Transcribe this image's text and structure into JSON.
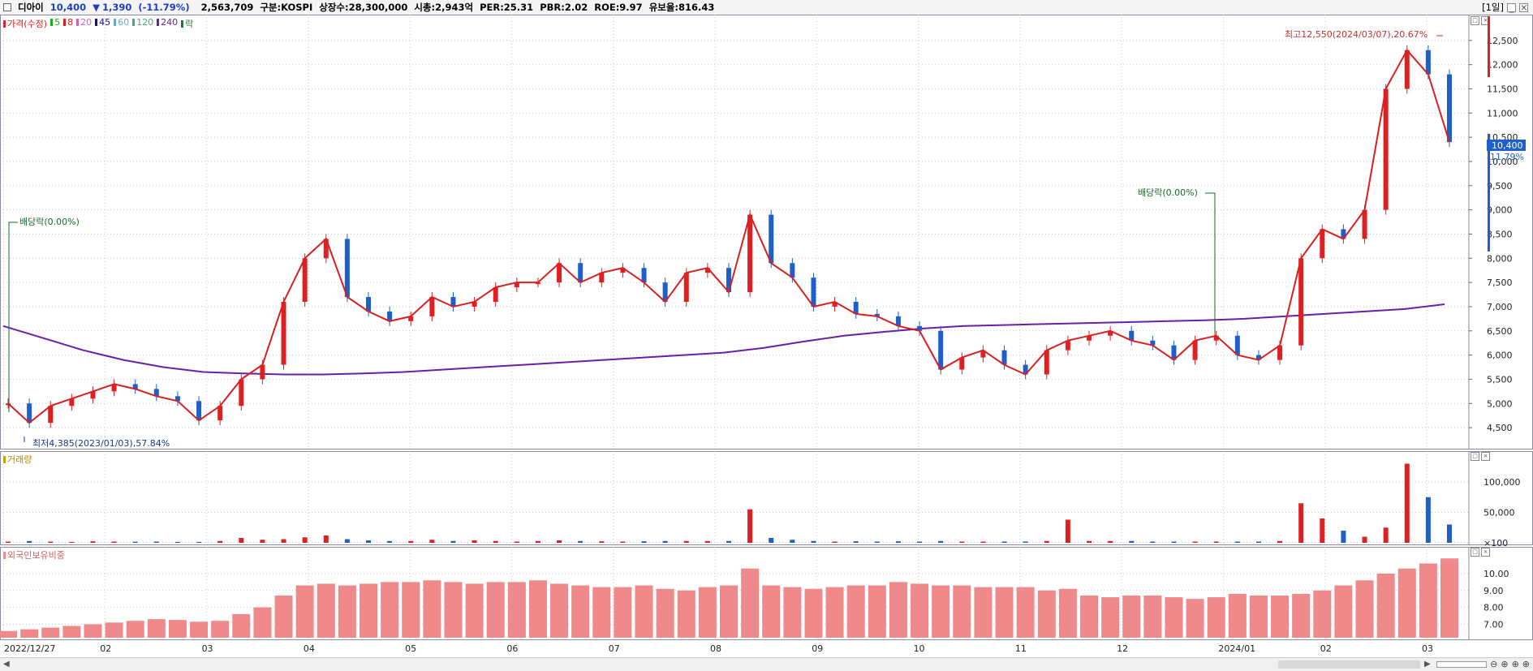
{
  "header": {
    "name": "디아이",
    "price": "10,400",
    "change_arrow": "▼",
    "change": "1,390",
    "change_pct": "(-11.79%)",
    "volume": "2,563,709",
    "market": "구분:KOSPI",
    "shares": "상장수:28,300,000",
    "market_cap": "시총:2,943억",
    "per": "PER:25.31",
    "pbr": "PBR:2.02",
    "roe": "ROE:9.97",
    "retention": "유보율:816.43",
    "period": "[1일]"
  },
  "legend": {
    "price_label": "가격(수정)",
    "ma": [
      {
        "label": "5",
        "color": "#22aa22"
      },
      {
        "label": "8",
        "color": "#e02020"
      },
      {
        "label": "20",
        "color": "#cc66bb"
      },
      {
        "label": "45",
        "color": "#1010a0"
      },
      {
        "label": "60",
        "color": "#66aacc"
      },
      {
        "label": "120",
        "color": "#44aa77"
      },
      {
        "label": "240",
        "color": "#6a1fa8"
      }
    ],
    "drop_label": "락",
    "volume_label": "거래량",
    "foreign_label": "외국인보유비중"
  },
  "annotations": {
    "high": "최고12,550(2024/03/07),20.67%",
    "low": "최저4,385(2023/01/03),57.84%",
    "dividend1": "배당락(0.00%)",
    "dividend2": "배당락(0.00%)",
    "current_price": "10,400",
    "current_pct": "-11.79%"
  },
  "colors": {
    "up": "#e02020",
    "down": "#1f5fc8",
    "foreign_bar": "#f08a8a",
    "ma240": "#6a1fa8"
  },
  "chart_data": [
    {
      "type": "line",
      "title": "가격(수정)",
      "ylim": [
        4200,
        12900
      ],
      "y_ticks": [
        4500,
        5000,
        5500,
        6000,
        6500,
        7000,
        7500,
        8000,
        8500,
        9000,
        9500,
        10000,
        10500,
        11000,
        11500,
        12000,
        12500
      ],
      "x_tick_labels": [
        "2022/12/27",
        "02",
        "03",
        "04",
        "05",
        "06",
        "07",
        "08",
        "09",
        "10",
        "11",
        "12",
        "2024/01",
        "02",
        "03"
      ],
      "series": [
        {
          "name": "가격(수정)",
          "style": "candlestick-close",
          "values": [
            5000,
            4600,
            4950,
            5100,
            5250,
            5400,
            5300,
            5150,
            5050,
            4650,
            4950,
            5500,
            5800,
            7100,
            8000,
            8400,
            7200,
            6900,
            6700,
            6800,
            7200,
            7000,
            7100,
            7400,
            7500,
            7500,
            7900,
            7500,
            7700,
            7800,
            7500,
            7100,
            7700,
            7800,
            7300,
            8900,
            7900,
            7600,
            7000,
            7100,
            6850,
            6800,
            6600,
            6500,
            5700,
            5950,
            6100,
            5800,
            5600,
            6100,
            6300,
            6400,
            6500,
            6300,
            6200,
            5900,
            6300,
            6400,
            6000,
            5900,
            6200,
            8000,
            8600,
            8400,
            9000,
            11500,
            12300,
            11800,
            10400
          ]
        },
        {
          "name": "240",
          "values": [
            6600,
            6350,
            6100,
            5900,
            5750,
            5650,
            5620,
            5600,
            5600,
            5620,
            5650,
            5700,
            5750,
            5800,
            5850,
            5900,
            5950,
            6000,
            6050,
            6150,
            6280,
            6400,
            6480,
            6550,
            6600,
            6620,
            6640,
            6660,
            6680,
            6700,
            6720,
            6750,
            6800,
            6850,
            6900,
            6950,
            7050
          ]
        }
      ]
    },
    {
      "type": "bar",
      "title": "거래량",
      "ylim": [
        0,
        140000
      ],
      "y_ticks": [
        100,
        50000,
        100000
      ],
      "tick_labels": [
        "×100",
        "50,000",
        "100,000"
      ],
      "series": [
        {
          "name": "거래량",
          "values": [
            2000,
            3000,
            2000,
            1500,
            2500,
            2000,
            1800,
            2000,
            1500,
            1500,
            3000,
            8000,
            5000,
            6000,
            9000,
            12000,
            6000,
            4000,
            3000,
            3000,
            5000,
            3000,
            4000,
            3000,
            2000,
            3000,
            4000,
            3000,
            2500,
            2000,
            2500,
            3000,
            3000,
            3000,
            3000,
            55000,
            8000,
            5000,
            3000,
            2000,
            2500,
            2000,
            2500,
            2000,
            3000,
            2000,
            2000,
            2000,
            2000,
            3000,
            38000,
            3000,
            3000,
            3000,
            2000,
            2000,
            2000,
            2000,
            2000,
            2000,
            3000,
            65000,
            40000,
            20000,
            10000,
            25000,
            130000,
            75000,
            30000
          ]
        }
      ]
    },
    {
      "type": "bar",
      "title": "외국인보유비중",
      "ylim": [
        6.2,
        11.2
      ],
      "y_ticks": [
        7,
        8,
        9,
        10
      ],
      "tick_labels": [
        "7.00",
        "8.00",
        "9.00",
        "10.00"
      ],
      "series": [
        {
          "name": "외국인보유비중",
          "values": [
            6.6,
            6.7,
            6.8,
            6.9,
            7.0,
            7.1,
            7.2,
            7.3,
            7.25,
            7.15,
            7.2,
            7.6,
            8.0,
            8.7,
            9.3,
            9.4,
            9.3,
            9.4,
            9.5,
            9.5,
            9.6,
            9.5,
            9.4,
            9.5,
            9.5,
            9.6,
            9.4,
            9.3,
            9.2,
            9.2,
            9.3,
            9.1,
            9.0,
            9.2,
            9.3,
            10.3,
            9.3,
            9.2,
            9.1,
            9.2,
            9.3,
            9.3,
            9.5,
            9.4,
            9.3,
            9.3,
            9.2,
            9.2,
            9.2,
            9.0,
            9.1,
            8.7,
            8.6,
            8.7,
            8.7,
            8.6,
            8.5,
            8.6,
            8.8,
            8.7,
            8.7,
            8.8,
            9.0,
            9.3,
            9.6,
            10.0,
            10.3,
            10.6,
            10.9
          ]
        }
      ]
    }
  ]
}
